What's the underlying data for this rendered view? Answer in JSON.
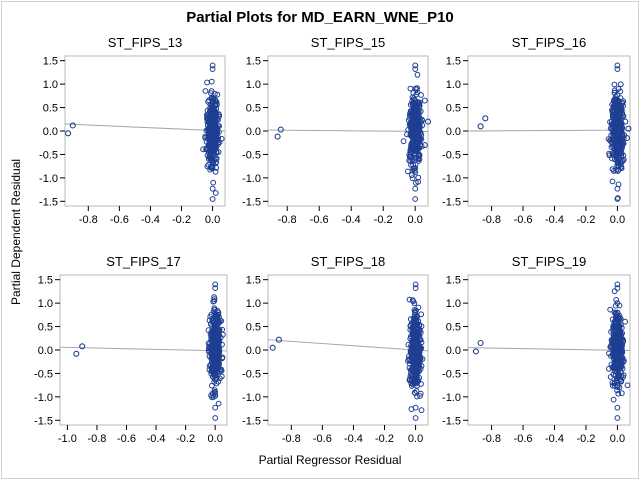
{
  "chart_data": [
    {
      "type": "scatter",
      "title": "Partial Plots for MD_EARN_WNE_P10",
      "xlabel": "Partial Regressor Residual",
      "ylabel": "Partial Dependent Residual",
      "panel_title": "ST_FIPS_13",
      "xlim": [
        -0.95,
        0.08
      ],
      "ylim": [
        -1.6,
        1.6
      ],
      "x_ticks": [
        -0.8,
        -0.6,
        -0.4,
        -0.2,
        0.0
      ],
      "x_tick_labels": [
        "-0.8",
        "-0.6",
        "-0.4",
        "-0.2",
        "0.0"
      ],
      "y_ticks": [
        1.5,
        1.0,
        0.5,
        0.0,
        -0.5,
        -1.0,
        -1.5
      ],
      "y_tick_labels": [
        "1.5",
        "1.0",
        "0.5",
        "0.0",
        "-0.5",
        "-1.0",
        "-1.5"
      ],
      "outlier_points": [
        {
          "x": -0.93,
          "y": -0.05
        },
        {
          "x": -0.9,
          "y": 0.12
        }
      ],
      "main_cluster": {
        "x_center": 0.0,
        "x_spread": 0.02,
        "y_min": -1.45,
        "y_max": 1.4
      },
      "fit_line": [
        {
          "x": -0.95,
          "y": 0.15
        },
        {
          "x": 0.08,
          "y": 0.0
        }
      ],
      "marker_color": "#1f3f93",
      "line_color": "#a0a4a8"
    },
    {
      "type": "scatter",
      "panel_title": "ST_FIPS_15",
      "xlim": [
        -0.92,
        0.08
      ],
      "ylim": [
        -1.6,
        1.6
      ],
      "x_ticks": [
        -0.8,
        -0.6,
        -0.4,
        -0.2,
        0.0
      ],
      "x_tick_labels": [
        "-0.8",
        "-0.6",
        "-0.4",
        "-0.2",
        "0.0"
      ],
      "y_ticks": [
        1.5,
        1.0,
        0.5,
        0.0,
        -0.5,
        -1.0,
        -1.5
      ],
      "y_tick_labels": [
        "1.5",
        "1.0",
        "0.5",
        "0.0",
        "-0.5",
        "-1.0",
        "-1.5"
      ],
      "outlier_points": [
        {
          "x": -0.86,
          "y": -0.12
        },
        {
          "x": -0.84,
          "y": 0.03
        },
        {
          "x": 0.06,
          "y": 0.65
        },
        {
          "x": 0.06,
          "y": -0.3
        },
        {
          "x": 0.08,
          "y": 0.2
        }
      ],
      "main_cluster": {
        "x_center": 0.0,
        "x_spread": 0.02,
        "y_min": -1.45,
        "y_max": 1.4
      },
      "fit_line": [
        {
          "x": -0.92,
          "y": 0.02
        },
        {
          "x": 0.08,
          "y": -0.01
        }
      ],
      "marker_color": "#1f3f93",
      "line_color": "#a0a4a8"
    },
    {
      "type": "scatter",
      "panel_title": "ST_FIPS_16",
      "xlim": [
        -0.95,
        0.08
      ],
      "ylim": [
        -1.6,
        1.6
      ],
      "x_ticks": [
        -0.8,
        -0.6,
        -0.4,
        -0.2,
        0.0
      ],
      "x_tick_labels": [
        "-0.8",
        "-0.6",
        "-0.4",
        "-0.2",
        "0.0"
      ],
      "y_ticks": [
        1.5,
        1.0,
        0.5,
        0.0,
        -0.5,
        -1.0,
        -1.5
      ],
      "y_tick_labels": [
        "1.5",
        "1.0",
        "0.5",
        "0.0",
        "-0.5",
        "-1.0",
        "-1.5"
      ],
      "outlier_points": [
        {
          "x": -0.87,
          "y": 0.1
        },
        {
          "x": -0.84,
          "y": 0.27
        },
        {
          "x": 0.05,
          "y": 0.2
        },
        {
          "x": 0.06,
          "y": -0.15
        },
        {
          "x": 0.07,
          "y": 0.05
        }
      ],
      "main_cluster": {
        "x_center": 0.0,
        "x_spread": 0.02,
        "y_min": -1.45,
        "y_max": 1.4
      },
      "fit_line": [
        {
          "x": -0.95,
          "y": 0.0
        },
        {
          "x": 0.08,
          "y": 0.02
        }
      ],
      "marker_color": "#1f3f93",
      "line_color": "#a0a4a8"
    },
    {
      "type": "scatter",
      "panel_title": "ST_FIPS_17",
      "xlim": [
        -1.05,
        0.08
      ],
      "ylim": [
        -1.6,
        1.6
      ],
      "x_ticks": [
        -1.0,
        -0.8,
        -0.6,
        -0.4,
        -0.2,
        0.0
      ],
      "x_tick_labels": [
        "-1.0",
        "-0.8",
        "-0.6",
        "-0.4",
        "-0.2",
        "0.0"
      ],
      "y_ticks": [
        1.5,
        1.0,
        0.5,
        0.0,
        -0.5,
        -1.0,
        -1.5
      ],
      "y_tick_labels": [
        "1.5",
        "1.0",
        "0.5",
        "0.0",
        "-0.5",
        "-1.0",
        "-1.5"
      ],
      "outlier_points": [
        {
          "x": -0.94,
          "y": -0.08
        },
        {
          "x": -0.9,
          "y": 0.08
        }
      ],
      "main_cluster": {
        "x_center": 0.0,
        "x_spread": 0.02,
        "y_min": -1.45,
        "y_max": 1.4
      },
      "fit_line": [
        {
          "x": -1.05,
          "y": 0.06
        },
        {
          "x": 0.08,
          "y": -0.02
        }
      ],
      "marker_color": "#1f3f93",
      "line_color": "#a0a4a8"
    },
    {
      "type": "scatter",
      "panel_title": "ST_FIPS_18",
      "xlim": [
        -0.95,
        0.08
      ],
      "ylim": [
        -1.6,
        1.6
      ],
      "x_ticks": [
        -0.8,
        -0.6,
        -0.4,
        -0.2,
        0.0
      ],
      "x_tick_labels": [
        "-0.8",
        "-0.6",
        "-0.4",
        "-0.2",
        "0.0"
      ],
      "y_ticks": [
        1.5,
        1.0,
        0.5,
        0.0,
        -0.5,
        -1.0,
        -1.5
      ],
      "y_tick_labels": [
        "1.5",
        "1.0",
        "0.5",
        "0.0",
        "-0.5",
        "-1.0",
        "-1.5"
      ],
      "outlier_points": [
        {
          "x": -0.92,
          "y": 0.05
        },
        {
          "x": -0.88,
          "y": 0.22
        }
      ],
      "main_cluster": {
        "x_center": 0.0,
        "x_spread": 0.02,
        "y_min": -1.45,
        "y_max": 1.4
      },
      "fit_line": [
        {
          "x": -0.95,
          "y": 0.22
        },
        {
          "x": 0.08,
          "y": -0.02
        }
      ],
      "marker_color": "#1f3f93",
      "line_color": "#a0a4a8"
    },
    {
      "type": "scatter",
      "panel_title": "ST_FIPS_19",
      "xlim": [
        -0.95,
        0.08
      ],
      "ylim": [
        -1.6,
        1.6
      ],
      "x_ticks": [
        -0.8,
        -0.6,
        -0.4,
        -0.2,
        0.0
      ],
      "x_tick_labels": [
        "-0.8",
        "-0.6",
        "-0.4",
        "-0.2",
        "0.0"
      ],
      "y_ticks": [
        1.5,
        1.0,
        0.5,
        0.0,
        -0.5,
        -1.0,
        -1.5
      ],
      "y_tick_labels": [
        "1.5",
        "1.0",
        "0.5",
        "0.0",
        "-0.5",
        "-1.0",
        "-1.5"
      ],
      "outlier_points": [
        {
          "x": -0.9,
          "y": -0.03
        },
        {
          "x": -0.87,
          "y": 0.15
        }
      ],
      "main_cluster": {
        "x_center": 0.0,
        "x_spread": 0.02,
        "y_min": -1.45,
        "y_max": 1.4
      },
      "fit_line": [
        {
          "x": -0.95,
          "y": 0.05
        },
        {
          "x": 0.08,
          "y": -0.01
        }
      ],
      "marker_color": "#1f3f93",
      "line_color": "#a0a4a8"
    }
  ]
}
